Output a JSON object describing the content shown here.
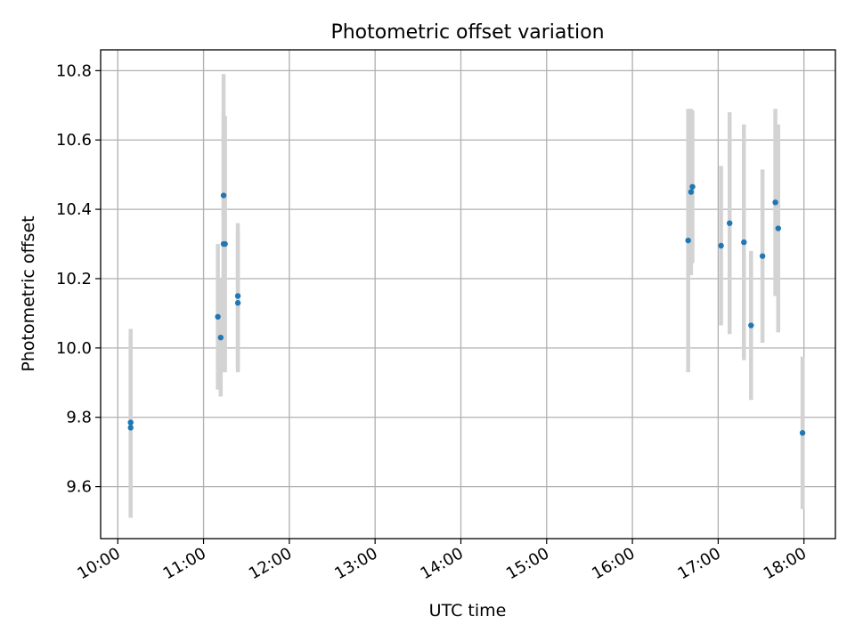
{
  "chart_data": {
    "type": "scatter",
    "title": "Photometric offset variation",
    "xlabel": "UTC time",
    "ylabel": "Photometric offset",
    "xlim": [
      "09:48",
      "18:22"
    ],
    "ylim": [
      9.45,
      10.86
    ],
    "x_ticks": [
      "10:00",
      "11:00",
      "12:00",
      "13:00",
      "14:00",
      "15:00",
      "16:00",
      "17:00",
      "18:00"
    ],
    "y_ticks": [
      9.6,
      9.8,
      10.0,
      10.2,
      10.4,
      10.6,
      10.8
    ],
    "grid": true,
    "colors": {
      "point": "#1f77b4",
      "errorbar": "#d3d3d3"
    },
    "points": [
      {
        "x": "10:09",
        "y": 9.785,
        "err": 0.27
      },
      {
        "x": "10:09",
        "y": 9.77,
        "err": 0.26
      },
      {
        "x": "11:10",
        "y": 10.09,
        "err": 0.21
      },
      {
        "x": "11:12",
        "y": 10.03,
        "err": 0.17
      },
      {
        "x": "11:14",
        "y": 10.44,
        "err": 0.35
      },
      {
        "x": "11:14",
        "y": 10.3,
        "err": 0.37
      },
      {
        "x": "11:15",
        "y": 10.3,
        "err": 0.37
      },
      {
        "x": "11:24",
        "y": 10.15,
        "err": 0.21
      },
      {
        "x": "11:24",
        "y": 10.13,
        "err": 0.2
      },
      {
        "x": "16:39",
        "y": 10.31,
        "err": 0.38
      },
      {
        "x": "16:41",
        "y": 10.45,
        "err": 0.24
      },
      {
        "x": "16:42",
        "y": 10.465,
        "err": 0.22
      },
      {
        "x": "17:02",
        "y": 10.295,
        "err": 0.23
      },
      {
        "x": "17:08",
        "y": 10.36,
        "err": 0.32
      },
      {
        "x": "17:18",
        "y": 10.305,
        "err": 0.34
      },
      {
        "x": "17:23",
        "y": 10.065,
        "err": 0.215
      },
      {
        "x": "17:31",
        "y": 10.265,
        "err": 0.25
      },
      {
        "x": "17:40",
        "y": 10.42,
        "err": 0.27
      },
      {
        "x": "17:42",
        "y": 10.345,
        "err": 0.3
      },
      {
        "x": "17:59",
        "y": 9.755,
        "err": 0.22
      }
    ]
  }
}
